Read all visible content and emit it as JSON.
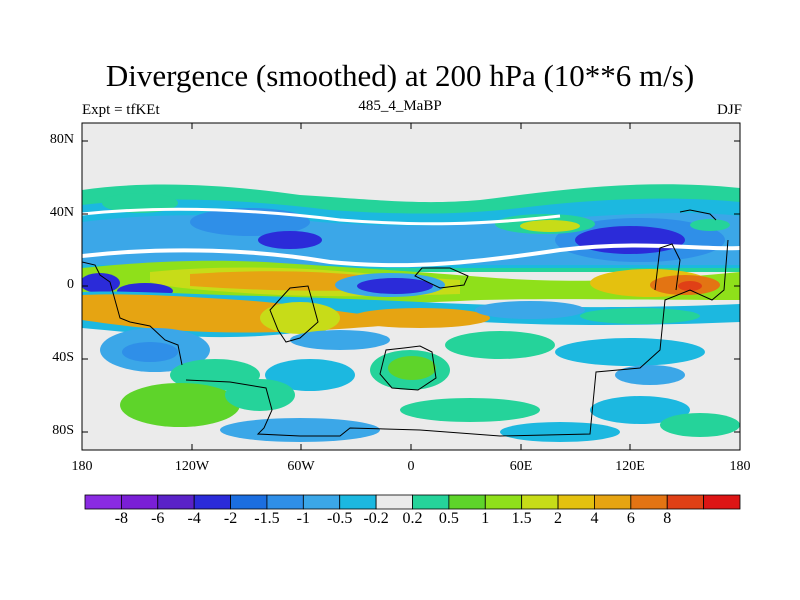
{
  "title": "Divergence (smoothed) at 200 hPa (10**6 m/s)",
  "left_label": "Expt = tfKEt",
  "center_label": "485_4_MaBP",
  "right_label": "DJF",
  "y_ticks": [
    "80N",
    "40N",
    "0",
    "40S",
    "80S"
  ],
  "x_ticks": [
    "180",
    "120W",
    "60W",
    "0",
    "60E",
    "120E",
    "180"
  ],
  "colorbar": {
    "colors": [
      "#8a2be2",
      "#7a1fd6",
      "#5a22c8",
      "#2b2bd9",
      "#1b6ee0",
      "#2f8fe8",
      "#3ba7e8",
      "#1cb8e0",
      "#ebebeb",
      "#25d39a",
      "#5ed42a",
      "#8fe01a",
      "#c7dc18",
      "#e4c10f",
      "#e6a412",
      "#e37413",
      "#e04016",
      "#dd1515"
    ],
    "labels": [
      "-8",
      "-6",
      "-4",
      "-2",
      "-1.5",
      "-1",
      "-0.5",
      "-0.2",
      "0.2",
      "0.5",
      "1",
      "1.5",
      "2",
      "4",
      "6",
      "8"
    ]
  }
}
